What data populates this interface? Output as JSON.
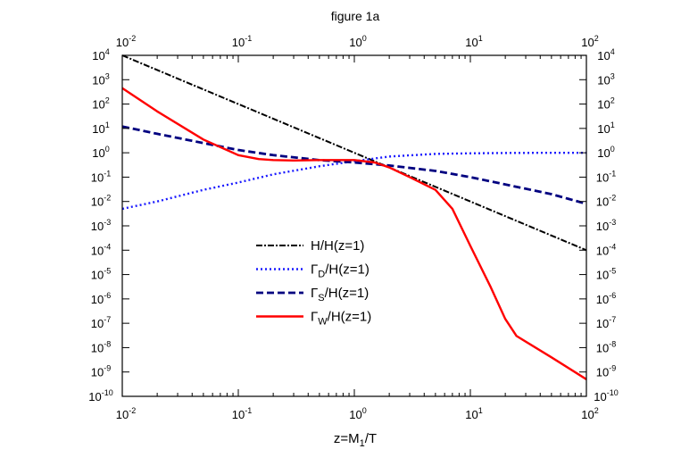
{
  "chart_data": {
    "type": "line",
    "title": "figure 1a",
    "xlabel": {
      "main": "z=M",
      "sub": "1",
      "tail": "/T"
    },
    "x_scale": "log",
    "y_scale": "log",
    "xlim": [
      0.01,
      100
    ],
    "ylim": [
      1e-10,
      10000
    ],
    "x_ticks": [
      {
        "base": "10",
        "exp": "-2"
      },
      {
        "base": "10",
        "exp": "-1"
      },
      {
        "base": "10",
        "exp": "0"
      },
      {
        "base": "10",
        "exp": "1"
      },
      {
        "base": "10",
        "exp": "2"
      }
    ],
    "y_ticks": [
      {
        "base": "10",
        "exp": "-10"
      },
      {
        "base": "10",
        "exp": "-9"
      },
      {
        "base": "10",
        "exp": "-8"
      },
      {
        "base": "10",
        "exp": "-7"
      },
      {
        "base": "10",
        "exp": "-6"
      },
      {
        "base": "10",
        "exp": "-5"
      },
      {
        "base": "10",
        "exp": "-4"
      },
      {
        "base": "10",
        "exp": "-3"
      },
      {
        "base": "10",
        "exp": "-2"
      },
      {
        "base": "10",
        "exp": "-1"
      },
      {
        "base": "10",
        "exp": "0"
      },
      {
        "base": "10",
        "exp": "1"
      },
      {
        "base": "10",
        "exp": "2"
      },
      {
        "base": "10",
        "exp": "3"
      },
      {
        "base": "10",
        "exp": "4"
      }
    ],
    "grid": false,
    "legend_position": "lower-center",
    "series": [
      {
        "name": "H/H(z=1)",
        "legend_parts": {
          "pre": "H/H(z=1)",
          "sub": "",
          "post": ""
        },
        "color": "#000000",
        "style": "dash-dot",
        "x": [
          0.01,
          100
        ],
        "y": [
          10000,
          0.0001
        ]
      },
      {
        "name": "ΓD/H(z=1)",
        "legend_parts": {
          "pre": "Γ",
          "sub": "D",
          "post": "/H(z=1)"
        },
        "color": "#1a1aff",
        "style": "dotted",
        "x": [
          0.01,
          0.02,
          0.05,
          0.1,
          0.2,
          0.5,
          1,
          2,
          5,
          10,
          20,
          50,
          100
        ],
        "y": [
          0.005,
          0.01,
          0.03,
          0.06,
          0.13,
          0.28,
          0.45,
          0.7,
          0.9,
          0.95,
          0.98,
          1.0,
          1.0
        ]
      },
      {
        "name": "ΓS/H(z=1)",
        "legend_parts": {
          "pre": "Γ",
          "sub": "S",
          "post": "/H(z=1)"
        },
        "color": "#000080",
        "style": "dashed",
        "x": [
          0.01,
          0.02,
          0.05,
          0.1,
          0.2,
          0.5,
          1,
          2,
          5,
          10,
          20,
          50,
          100
        ],
        "y": [
          12,
          6,
          2.5,
          1.3,
          0.8,
          0.5,
          0.4,
          0.3,
          0.18,
          0.1,
          0.05,
          0.02,
          0.008
        ]
      },
      {
        "name": "ΓW/H(z=1)",
        "legend_parts": {
          "pre": "Γ",
          "sub": "W",
          "post": "/H(z=1)"
        },
        "color": "#ff0000",
        "style": "solid",
        "x": [
          0.01,
          0.02,
          0.05,
          0.1,
          0.15,
          0.2,
          0.3,
          0.5,
          1,
          1.5,
          2,
          3,
          5,
          7,
          10,
          15,
          20,
          25,
          50,
          100
        ],
        "y": [
          450,
          50,
          3.5,
          0.8,
          0.55,
          0.5,
          0.48,
          0.5,
          0.5,
          0.4,
          0.25,
          0.1,
          0.03,
          0.005,
          0.00015,
          3e-06,
          1.5e-07,
          3e-08,
          4e-09,
          5e-10
        ]
      }
    ]
  }
}
